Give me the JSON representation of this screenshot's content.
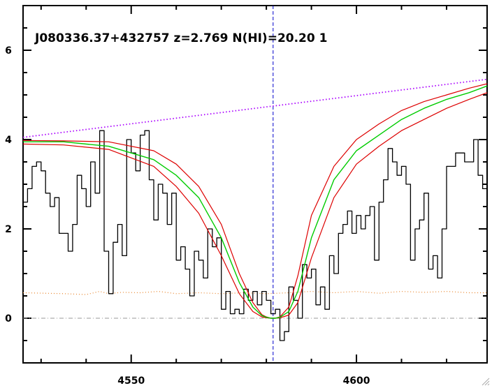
{
  "chart_data": {
    "type": "line",
    "title": "J080336.37+432757 z=2.769 N(HI)=20.20 1",
    "xlim": [
      4526,
      4629
    ],
    "ylim": [
      -1,
      7
    ],
    "x_ticks": [
      4550,
      4600
    ],
    "y_ticks": [
      0,
      2,
      4,
      6
    ],
    "x_minor_step": 10,
    "y_minor_step": 0.5,
    "line_center": 4581.5,
    "colors": {
      "flux": "#000000",
      "model": "#00cc00",
      "model_bounds": "#dd0000",
      "continuum": "#aa00ff",
      "error": "#e8842a",
      "center": "#0000cc",
      "zero": "#999999"
    },
    "series": [
      {
        "role": "flux",
        "style": "steps",
        "x": [
          4526.0,
          4527.0,
          4528.0,
          4529.0,
          4530.0,
          4531.0,
          4532.0,
          4533.0,
          4534.0,
          4535.0,
          4536.0,
          4537.0,
          4538.0,
          4539.0,
          4540.0,
          4541.0,
          4542.0,
          4543.0,
          4544.0,
          4545.0,
          4546.0,
          4547.0,
          4548.0,
          4549.0,
          4550.0,
          4551.0,
          4552.0,
          4553.0,
          4554.0,
          4555.0,
          4556.0,
          4557.0,
          4558.0,
          4559.0,
          4560.0,
          4561.0,
          4562.0,
          4563.0,
          4564.0,
          4565.0,
          4566.0,
          4567.0,
          4568.0,
          4569.0,
          4570.0,
          4571.0,
          4572.0,
          4573.0,
          4574.0,
          4575.0,
          4576.0,
          4577.0,
          4578.0,
          4579.0,
          4580.0,
          4581.0,
          4582.0,
          4583.0,
          4584.0,
          4585.0,
          4586.0,
          4587.0,
          4588.0,
          4589.0,
          4590.0,
          4591.0,
          4592.0,
          4593.0,
          4594.0,
          4595.0,
          4596.0,
          4597.0,
          4598.0,
          4599.0,
          4600.0,
          4601.0,
          4602.0,
          4603.0,
          4604.0,
          4605.0,
          4606.0,
          4607.0,
          4608.0,
          4609.0,
          4610.0,
          4611.0,
          4612.0,
          4613.0,
          4614.0,
          4615.0,
          4616.0,
          4617.0,
          4618.0,
          4619.0,
          4620.0,
          4621.0,
          4622.0,
          4623.0,
          4624.0,
          4625.0,
          4626.0,
          4627.0,
          4628.0
        ],
        "values": [
          2.6,
          2.9,
          3.4,
          3.5,
          3.3,
          2.8,
          2.5,
          2.7,
          1.9,
          1.9,
          1.5,
          2.1,
          3.2,
          2.9,
          2.5,
          3.5,
          2.8,
          4.2,
          1.5,
          0.55,
          1.7,
          2.1,
          1.4,
          4.0,
          3.7,
          3.3,
          4.1,
          4.2,
          3.1,
          2.2,
          3.0,
          2.8,
          2.1,
          2.8,
          1.3,
          1.6,
          1.1,
          0.5,
          1.5,
          1.3,
          0.9,
          2.0,
          1.6,
          1.8,
          0.2,
          0.6,
          0.1,
          0.2,
          0.1,
          0.65,
          0.4,
          0.6,
          0.3,
          0.6,
          0.4,
          0.1,
          0.2,
          -0.5,
          -0.3,
          0.7,
          0.4,
          0.0,
          1.2,
          0.9,
          1.1,
          0.3,
          0.7,
          0.2,
          1.4,
          1.0,
          1.9,
          2.1,
          2.4,
          1.9,
          2.3,
          2.0,
          2.3,
          2.5,
          1.3,
          2.6,
          3.1,
          3.8,
          3.5,
          3.2,
          3.4,
          3.0,
          1.3,
          2.0,
          2.2,
          2.8,
          1.1,
          1.4,
          0.9,
          2.0,
          3.4,
          3.4,
          3.7,
          3.7,
          3.5,
          3.5,
          4.0,
          3.2,
          2.9
        ]
      },
      {
        "role": "error",
        "style": "dotted",
        "x": [
          4526,
          4535,
          4540,
          4543,
          4545,
          4548,
          4552,
          4556,
          4560,
          4565,
          4570,
          4575,
          4580,
          4585,
          4590,
          4595,
          4600,
          4605,
          4610,
          4615,
          4620,
          4625,
          4629
        ],
        "values": [
          0.57,
          0.55,
          0.53,
          0.6,
          0.55,
          0.58,
          0.57,
          0.6,
          0.55,
          0.57,
          0.55,
          0.57,
          0.55,
          0.57,
          0.6,
          0.57,
          0.6,
          0.56,
          0.6,
          0.58,
          0.6,
          0.57,
          0.57
        ]
      },
      {
        "role": "continuum",
        "style": "dotted",
        "x": [
          4526,
          4629
        ],
        "values": [
          4.05,
          5.35
        ]
      },
      {
        "role": "model",
        "style": "line",
        "x": [
          4526,
          4535,
          4545,
          4555,
          4560,
          4565,
          4570,
          4574,
          4577,
          4579,
          4580,
          4581,
          4582,
          4583,
          4585,
          4587,
          4590,
          4595,
          4600,
          4605,
          4610,
          4615,
          4620,
          4625,
          4629
        ],
        "values": [
          3.95,
          3.95,
          3.85,
          3.55,
          3.2,
          2.7,
          1.8,
          0.8,
          0.25,
          0.06,
          0.02,
          0.0,
          0.0,
          0.02,
          0.15,
          0.6,
          1.8,
          3.1,
          3.75,
          4.1,
          4.45,
          4.7,
          4.9,
          5.05,
          5.2
        ]
      },
      {
        "role": "model_upper",
        "style": "line",
        "x": [
          4526,
          4535,
          4545,
          4555,
          4560,
          4565,
          4570,
          4574,
          4577,
          4579,
          4580,
          4581,
          4582,
          4583,
          4585,
          4587,
          4590,
          4595,
          4600,
          4605,
          4610,
          4615,
          4620,
          4625,
          4629
        ],
        "values": [
          3.98,
          3.97,
          3.95,
          3.75,
          3.45,
          2.95,
          2.1,
          1.0,
          0.35,
          0.08,
          0.03,
          0.0,
          0.0,
          0.03,
          0.25,
          0.95,
          2.3,
          3.4,
          4.0,
          4.35,
          4.65,
          4.85,
          5.0,
          5.15,
          5.25
        ]
      },
      {
        "role": "model_lower",
        "style": "line",
        "x": [
          4526,
          4535,
          4545,
          4555,
          4560,
          4565,
          4570,
          4574,
          4577,
          4579,
          4580,
          4581,
          4582,
          4583,
          4585,
          4587,
          4590,
          4595,
          4600,
          4605,
          4610,
          4615,
          4620,
          4625,
          4629
        ],
        "values": [
          3.9,
          3.88,
          3.78,
          3.4,
          2.95,
          2.35,
          1.4,
          0.55,
          0.15,
          0.03,
          0.01,
          0.0,
          0.0,
          0.01,
          0.07,
          0.35,
          1.35,
          2.7,
          3.45,
          3.85,
          4.2,
          4.45,
          4.7,
          4.9,
          5.05
        ]
      }
    ]
  }
}
